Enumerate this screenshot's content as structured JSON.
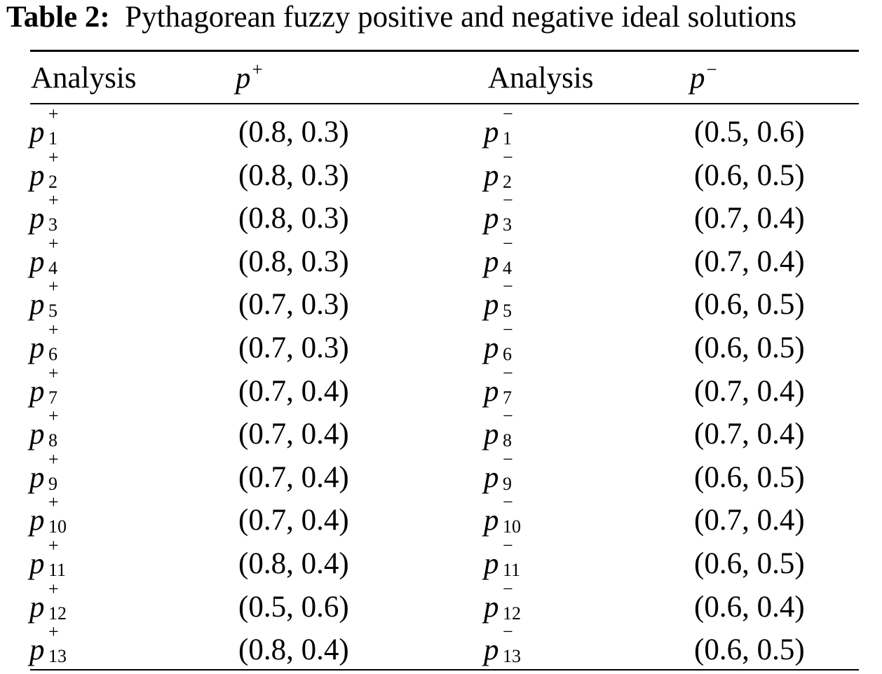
{
  "caption": {
    "label": "Table 2:",
    "title": "Pythagorean fuzzy positive and negative ideal solutions"
  },
  "headers": {
    "col1": "Analysis",
    "col2_symbol": "p",
    "col2_sup": "+",
    "col3": "Analysis",
    "col4_symbol": "p",
    "col4_sup": "−"
  },
  "rows": [
    {
      "pos_sym": "p",
      "pos_sup": "+",
      "pos_sub": "1",
      "pos_val": "(0.8, 0.3)",
      "neg_sym": "p",
      "neg_sup": "−",
      "neg_sub": "1",
      "neg_val": "(0.5, 0.6)"
    },
    {
      "pos_sym": "p",
      "pos_sup": "+",
      "pos_sub": "2",
      "pos_val": "(0.8, 0.3)",
      "neg_sym": "p",
      "neg_sup": "−",
      "neg_sub": "2",
      "neg_val": "(0.6, 0.5)"
    },
    {
      "pos_sym": "p",
      "pos_sup": "+",
      "pos_sub": "3",
      "pos_val": "(0.8, 0.3)",
      "neg_sym": "p",
      "neg_sup": "−",
      "neg_sub": "3",
      "neg_val": "(0.7, 0.4)"
    },
    {
      "pos_sym": "p",
      "pos_sup": "+",
      "pos_sub": "4",
      "pos_val": "(0.8, 0.3)",
      "neg_sym": "p",
      "neg_sup": "−",
      "neg_sub": "4",
      "neg_val": "(0.7, 0.4)"
    },
    {
      "pos_sym": "p",
      "pos_sup": "+",
      "pos_sub": "5",
      "pos_val": "(0.7, 0.3)",
      "neg_sym": "p",
      "neg_sup": "−",
      "neg_sub": "5",
      "neg_val": "(0.6, 0.5)"
    },
    {
      "pos_sym": "p",
      "pos_sup": "+",
      "pos_sub": "6",
      "pos_val": "(0.7, 0.3)",
      "neg_sym": "p",
      "neg_sup": "−",
      "neg_sub": "6",
      "neg_val": "(0.6, 0.5)"
    },
    {
      "pos_sym": "p",
      "pos_sup": "+",
      "pos_sub": "7",
      "pos_val": "(0.7, 0.4)",
      "neg_sym": "p",
      "neg_sup": "−",
      "neg_sub": "7",
      "neg_val": "(0.7, 0.4)"
    },
    {
      "pos_sym": "p",
      "pos_sup": "+",
      "pos_sub": "8",
      "pos_val": "(0.7, 0.4)",
      "neg_sym": "p",
      "neg_sup": "−",
      "neg_sub": "8",
      "neg_val": "(0.7, 0.4)"
    },
    {
      "pos_sym": "p",
      "pos_sup": "+",
      "pos_sub": "9",
      "pos_val": "(0.7, 0.4)",
      "neg_sym": "p",
      "neg_sup": "−",
      "neg_sub": "9",
      "neg_val": "(0.6, 0.5)"
    },
    {
      "pos_sym": "p",
      "pos_sup": "+",
      "pos_sub": "10",
      "pos_val": "(0.7, 0.4)",
      "neg_sym": "p",
      "neg_sup": "−",
      "neg_sub": "10",
      "neg_val": "(0.7, 0.4)"
    },
    {
      "pos_sym": "p",
      "pos_sup": "+",
      "pos_sub": "11",
      "pos_val": "(0.8, 0.4)",
      "neg_sym": "p",
      "neg_sup": "−",
      "neg_sub": "11",
      "neg_val": "(0.6, 0.5)"
    },
    {
      "pos_sym": "p",
      "pos_sup": "+",
      "pos_sub": "12",
      "pos_val": "(0.5, 0.6)",
      "neg_sym": "p",
      "neg_sup": "−",
      "neg_sub": "12",
      "neg_val": "(0.6, 0.4)"
    },
    {
      "pos_sym": "p",
      "pos_sup": "+",
      "pos_sub": "13",
      "pos_val": "(0.8, 0.4)",
      "neg_sym": "p",
      "neg_sup": "−",
      "neg_sub": "13",
      "neg_val": "(0.6, 0.5)"
    }
  ]
}
